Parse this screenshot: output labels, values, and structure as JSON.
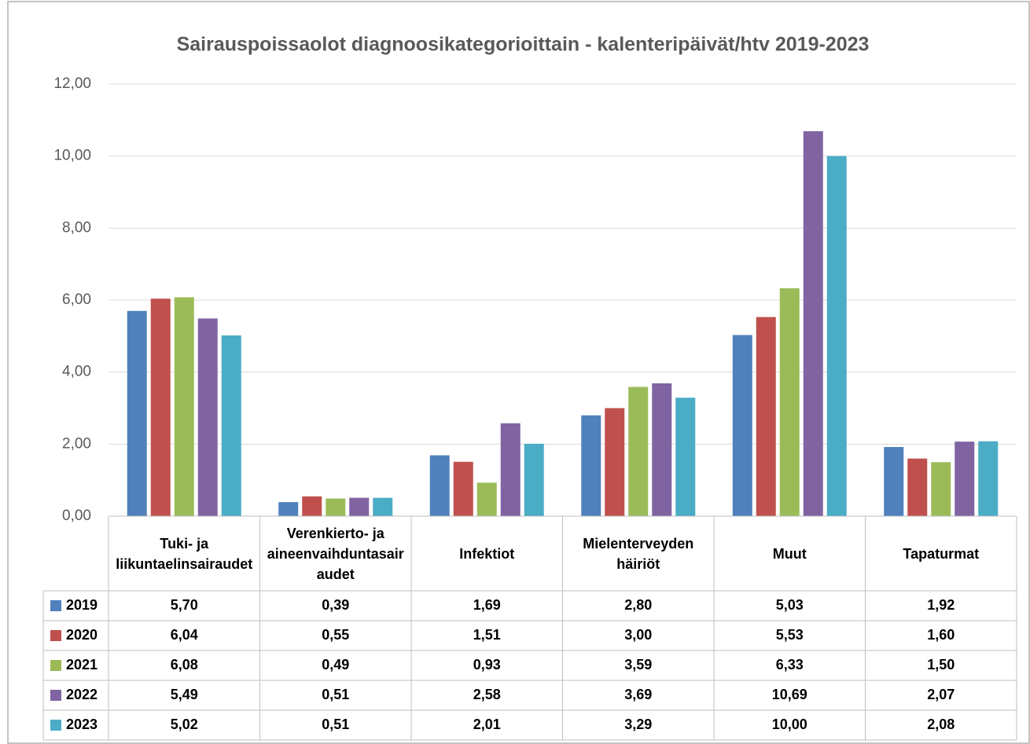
{
  "chart_data": {
    "type": "bar",
    "title": "Sairauspoissaolot diagnoosikategorioittain  - kalenteripäivät/htv 2019-2023",
    "categories": [
      "Tuki- ja liikuntaelinsairaudet",
      "Verenkierto- ja aineenvaihduntasairaudet",
      "Infektiot",
      "Mielenterveyden häiriöt",
      "Muut",
      "Tapaturmat"
    ],
    "series": [
      {
        "name": "2019",
        "color": "#4f81bd",
        "values": [
          5.7,
          0.39,
          1.69,
          2.8,
          5.03,
          1.92
        ],
        "value_labels": [
          "5,70",
          "0,39",
          "1,69",
          "2,80",
          "5,03",
          "1,92"
        ]
      },
      {
        "name": "2020",
        "color": "#c0504d",
        "values": [
          6.04,
          0.55,
          1.51,
          3.0,
          5.53,
          1.6
        ],
        "value_labels": [
          "6,04",
          "0,55",
          "1,51",
          "3,00",
          "5,53",
          "1,60"
        ]
      },
      {
        "name": "2021",
        "color": "#9bbb59",
        "values": [
          6.08,
          0.49,
          0.93,
          3.59,
          6.33,
          1.5
        ],
        "value_labels": [
          "6,08",
          "0,49",
          "0,93",
          "3,59",
          "6,33",
          "1,50"
        ]
      },
      {
        "name": "2022",
        "color": "#8064a2",
        "values": [
          5.49,
          0.51,
          2.58,
          3.69,
          10.69,
          2.07
        ],
        "value_labels": [
          "5,49",
          "0,51",
          "2,58",
          "3,69",
          "10,69",
          "2,07"
        ]
      },
      {
        "name": "2023",
        "color": "#4bacc6",
        "values": [
          5.02,
          0.51,
          2.01,
          3.29,
          10.0,
          2.08
        ],
        "value_labels": [
          "5,02",
          "0,51",
          "2,01",
          "3,29",
          "10,00",
          "2,08"
        ]
      }
    ],
    "ylim": [
      0,
      12
    ],
    "yticks": [
      {
        "value": 0,
        "label": "0,00"
      },
      {
        "value": 2,
        "label": "2,00"
      },
      {
        "value": 4,
        "label": "4,00"
      },
      {
        "value": 6,
        "label": "6,00"
      },
      {
        "value": 8,
        "label": "8,00"
      },
      {
        "value": 10,
        "label": "10,00"
      },
      {
        "value": 12,
        "label": "12,00"
      }
    ],
    "grid": true
  }
}
